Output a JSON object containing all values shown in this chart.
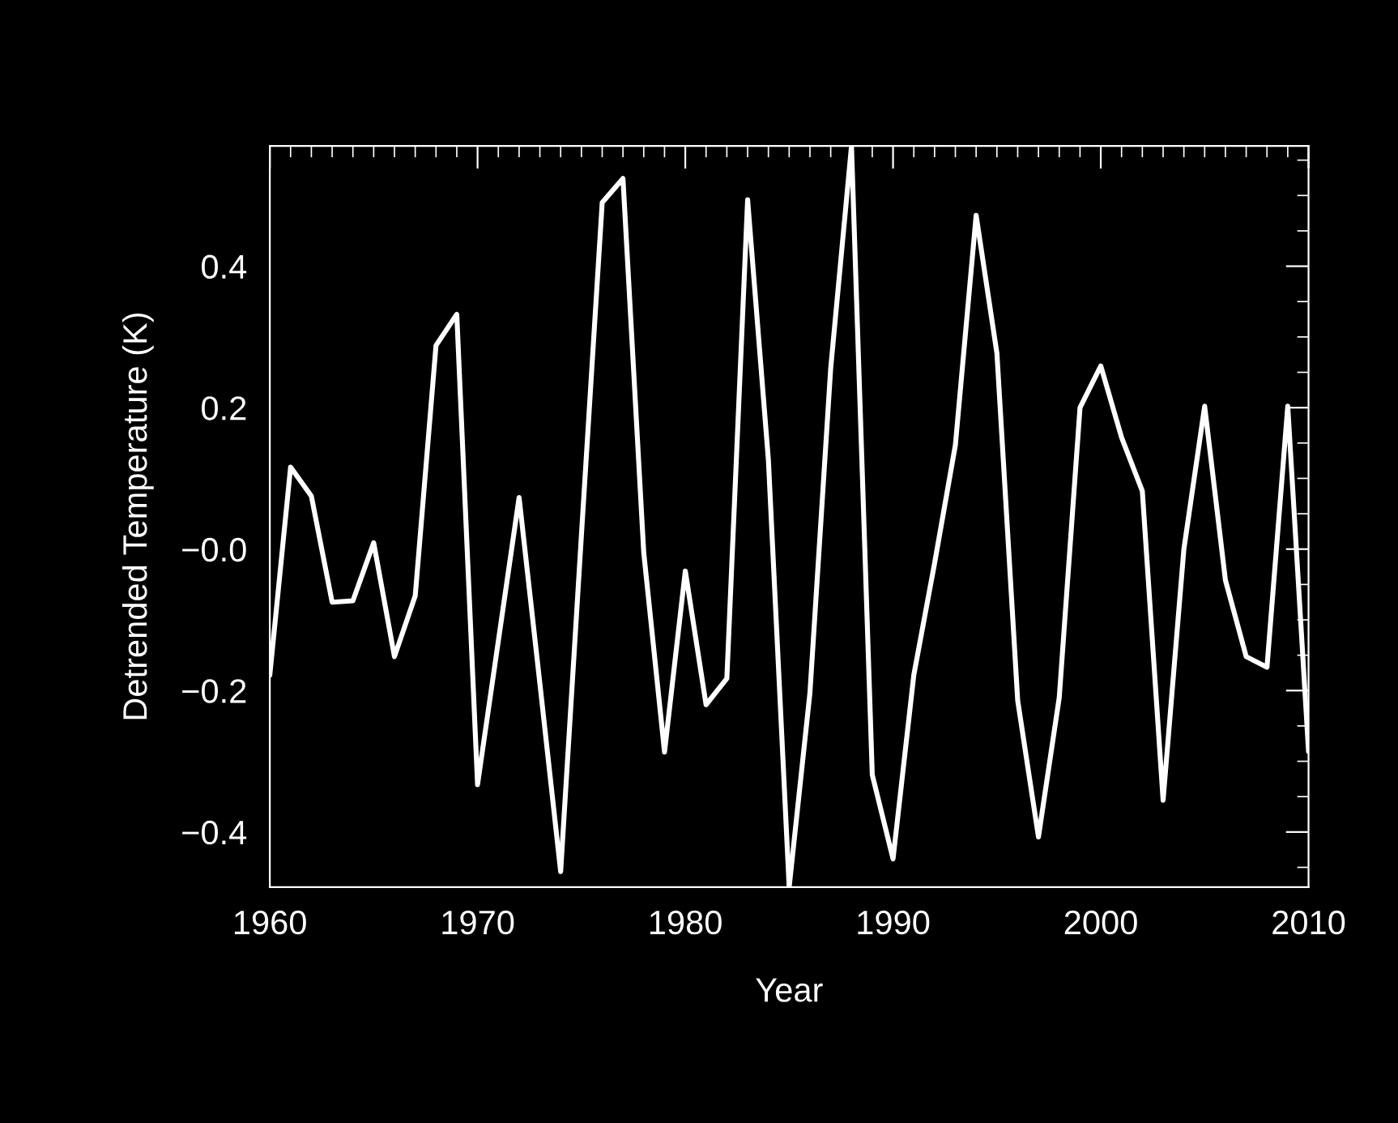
{
  "chart_data": {
    "type": "line",
    "xlabel": "Year",
    "ylabel": "Detrended Temperature (K)",
    "x": [
      1960,
      1961,
      1962,
      1963,
      1964,
      1965,
      1966,
      1967,
      1968,
      1969,
      1970,
      1971,
      1972,
      1973,
      1974,
      1975,
      1976,
      1977,
      1978,
      1979,
      1980,
      1981,
      1982,
      1983,
      1984,
      1985,
      1986,
      1987,
      1988,
      1989,
      1990,
      1991,
      1992,
      1993,
      1994,
      1995,
      1996,
      1997,
      1998,
      1999,
      2000,
      2001,
      2002,
      2003,
      2004,
      2005,
      2006,
      2007,
      2008,
      2009,
      2010
    ],
    "series": [
      {
        "color": "#ffffff",
        "values": [
          -0.178,
          0.116,
          0.075,
          -0.075,
          -0.073,
          0.009,
          -0.152,
          -0.066,
          0.288,
          0.332,
          -0.333,
          -0.13,
          0.073,
          -0.19,
          -0.456,
          0.02,
          0.49,
          0.524,
          -0.005,
          -0.287,
          -0.031,
          -0.22,
          -0.183,
          0.494,
          0.126,
          -0.478,
          -0.203,
          0.256,
          0.57,
          -0.319,
          -0.438,
          -0.178,
          -0.02,
          0.147,
          0.472,
          0.277,
          -0.214,
          -0.407,
          -0.21,
          0.2,
          0.259,
          0.158,
          0.082,
          -0.355,
          0.0,
          0.202,
          -0.044,
          -0.152,
          -0.167,
          0.202,
          -0.286
        ]
      }
    ],
    "xlim": [
      1960,
      2010
    ],
    "xticks": [
      1960,
      1970,
      1980,
      1990,
      2000,
      2010
    ],
    "ylim": [
      -0.478,
      0.57
    ],
    "yticks": [
      {
        "value": -0.4,
        "label": "−0.4"
      },
      {
        "value": -0.2,
        "label": "−0.2"
      },
      {
        "value": 0,
        "label": "−0.0"
      },
      0.2,
      0.4
    ],
    "grid": false,
    "legend": false,
    "marker": "none",
    "line_style": "solid"
  }
}
